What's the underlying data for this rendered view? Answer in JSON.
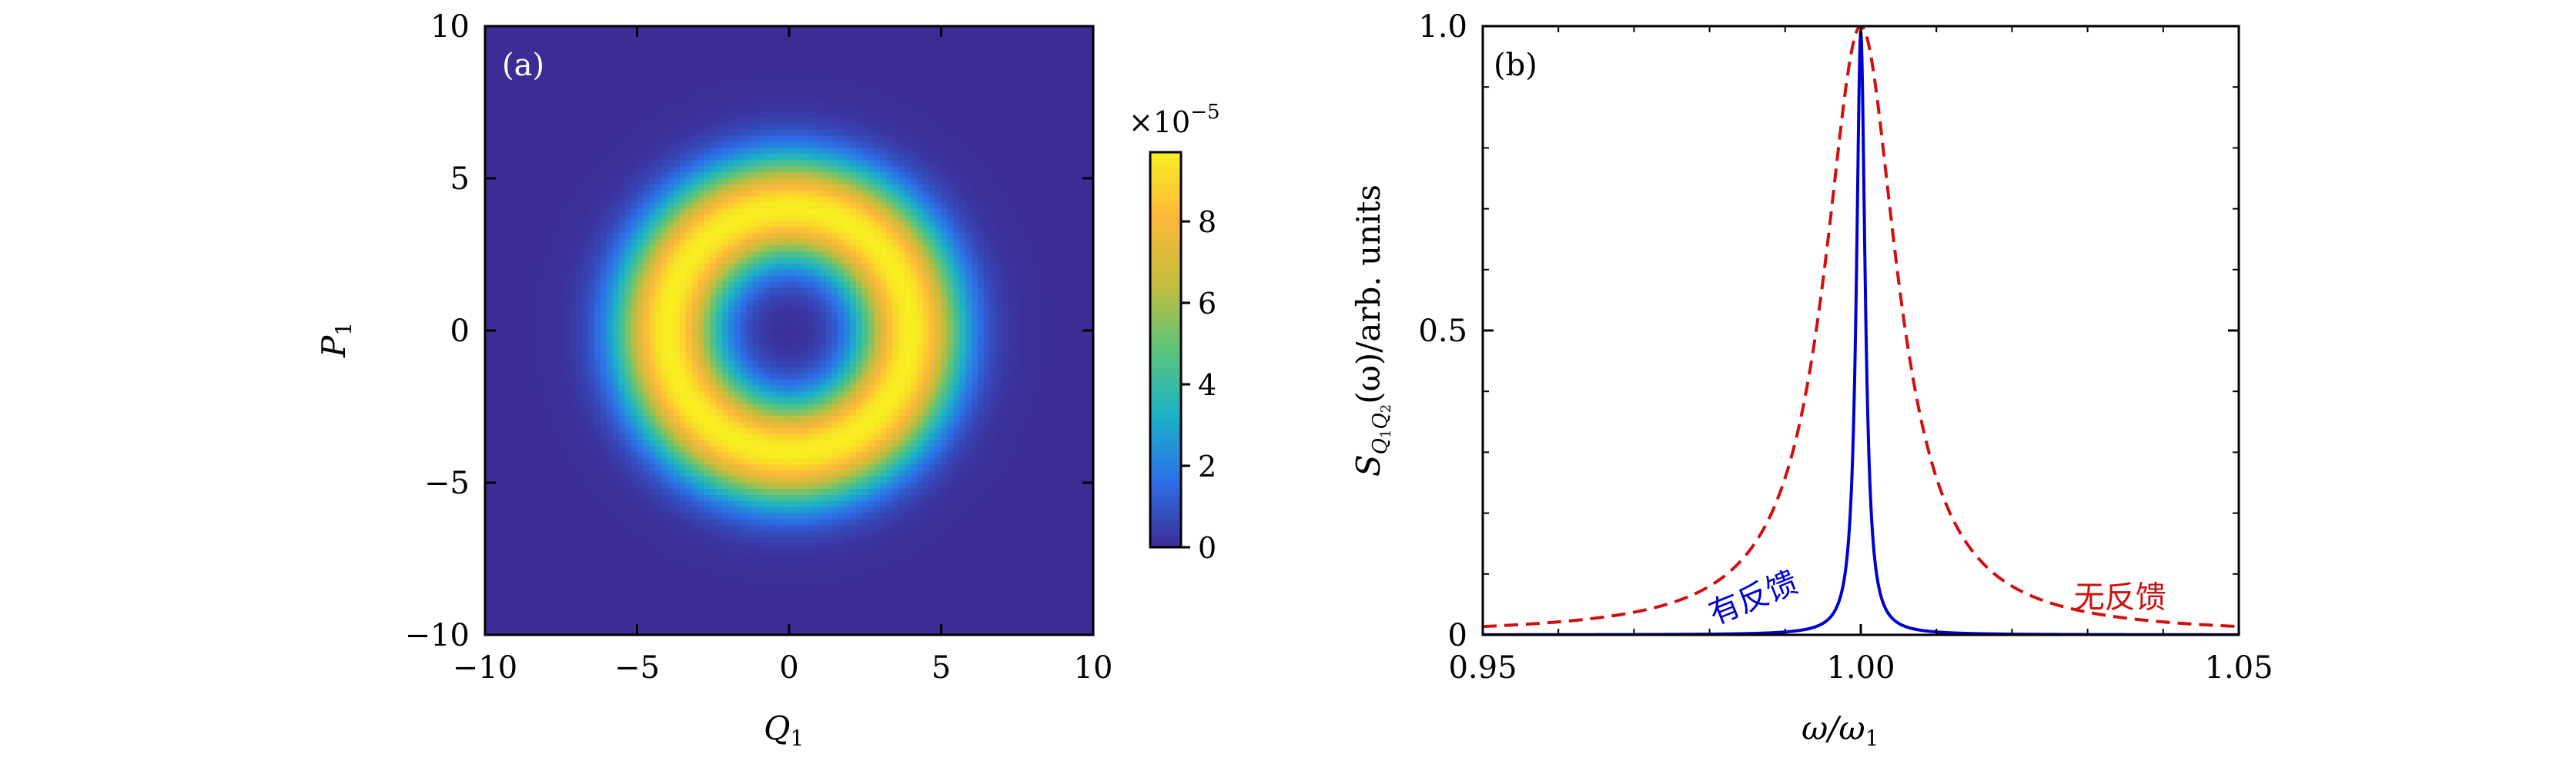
{
  "chart_data": [
    {
      "type": "heatmap",
      "panel_label": "(a)",
      "xlabel": "Q",
      "xlabel_sub": "1",
      "ylabel": "P",
      "ylabel_sub": "1",
      "xlim": [
        -10,
        10
      ],
      "ylim": [
        -10,
        10
      ],
      "xticks": [
        -10,
        -5,
        0,
        5,
        10
      ],
      "yticks": [
        -10,
        -5,
        0,
        5,
        10
      ],
      "xtick_labels": [
        "−10",
        "−5",
        "0",
        "5",
        "10"
      ],
      "ytick_labels": [
        "−10",
        "−5",
        "0",
        "5",
        "10"
      ],
      "distribution": {
        "shape": "ring",
        "peak_radius": 4.0,
        "radial_width": 1.2,
        "peak_value": 9.7
      },
      "colorbar": {
        "range": [
          0,
          9.7
        ],
        "ticks": [
          0,
          2,
          4,
          6,
          8
        ],
        "tick_labels": [
          "0",
          "2",
          "4",
          "6",
          "8"
        ],
        "multiplier_prefix": "×10",
        "multiplier_exponent": "−5",
        "colormap": [
          "#3c2d96",
          "#2d6fe8",
          "#1bb2c8",
          "#5cc47a",
          "#c5bd3c",
          "#fcb83a",
          "#f8ee20"
        ]
      }
    },
    {
      "type": "line",
      "panel_label": "(b)",
      "xlabel": "ω/ω",
      "xlabel_sub": "1",
      "ylabel": "(ω)/arb. units",
      "ylabel_symbol": "S",
      "ylabel_sub_main": "Q",
      "ylabel_sub_1": "1",
      "ylabel_sub_2": "Q",
      "ylabel_sub_3": "2",
      "xlim": [
        0.95,
        1.05
      ],
      "ylim": [
        0,
        1.0
      ],
      "xticks": [
        0.95,
        1.0,
        1.05
      ],
      "yticks": [
        0,
        0.5,
        1.0
      ],
      "xtick_labels": [
        "0.95",
        "1.00",
        "1.05"
      ],
      "ytick_labels": [
        "0",
        "0.5",
        "1.0"
      ],
      "series": [
        {
          "name": "有反馈",
          "style": "solid",
          "color": "#0000d0",
          "center": 1.0,
          "half_width": 0.0007,
          "peak": 0.99
        },
        {
          "name": "无反馈",
          "style": "dashed",
          "color": "#d01010",
          "center": 1.0,
          "half_width": 0.0059,
          "peak": 1.0
        }
      ],
      "annotations": [
        {
          "text": "有反馈",
          "color": "#0000d0",
          "x": 0.9863,
          "y": 0.045,
          "rotation": -22
        },
        {
          "text": "无反馈",
          "color": "#d01010",
          "x": 1.0343,
          "y": 0.045,
          "rotation": 0
        }
      ]
    }
  ]
}
